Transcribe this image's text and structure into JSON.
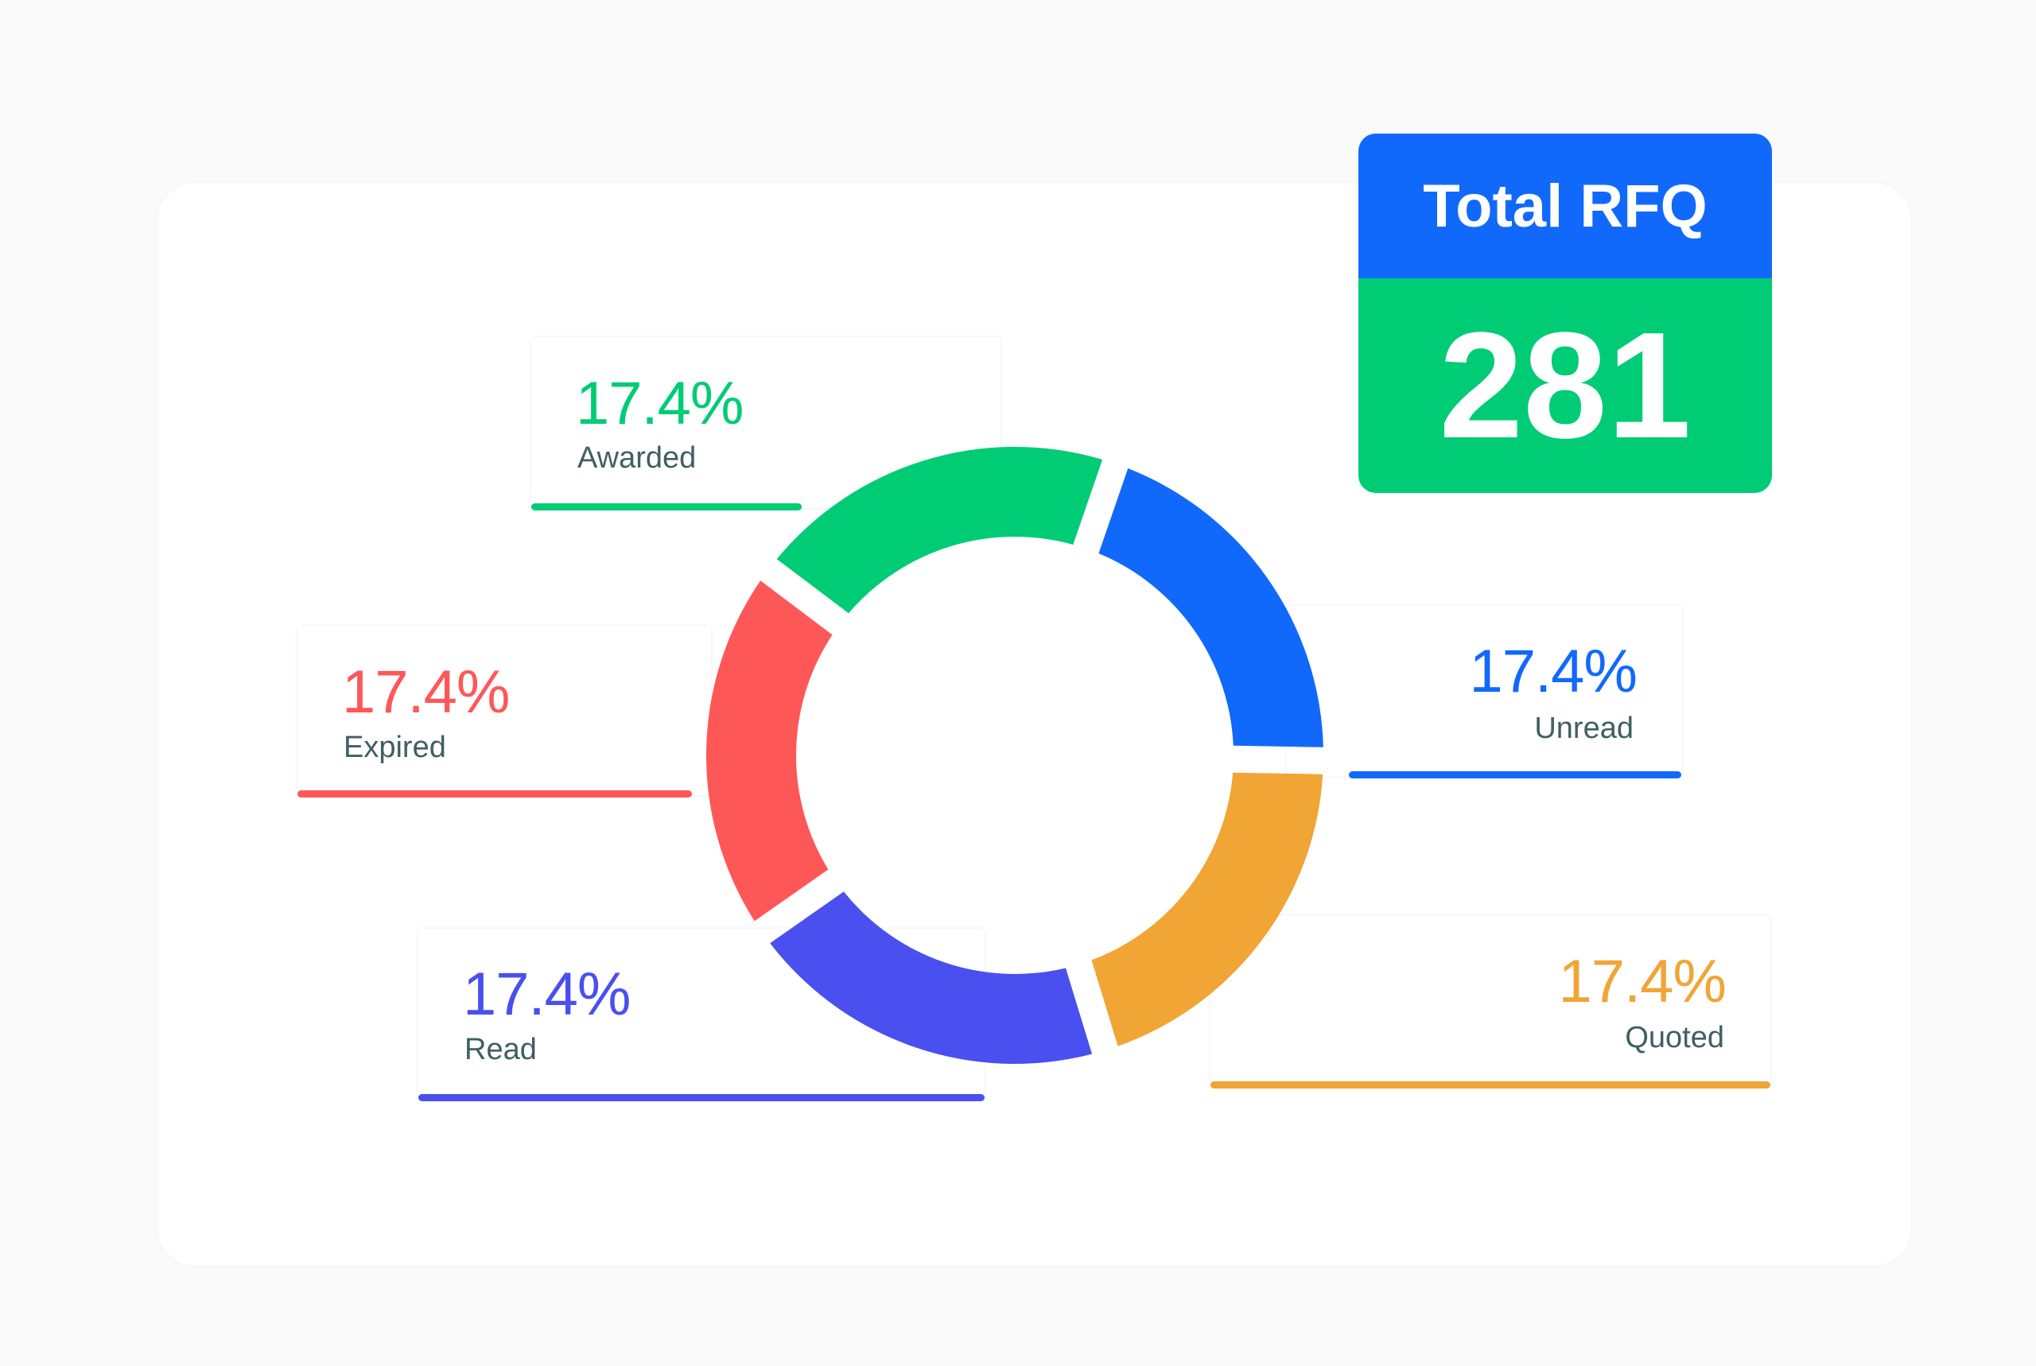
{
  "chart_data": {
    "type": "pie",
    "style": "donut",
    "categories": [
      "Awarded",
      "Unread",
      "Quoted",
      "Read",
      "Expired"
    ],
    "values": [
      17.4,
      17.4,
      17.4,
      17.4,
      17.4
    ],
    "value_labels": [
      "17.4%",
      "17.4%",
      "17.4%",
      "17.4%",
      "17.4%"
    ],
    "colors": [
      "#00cc75",
      "#1169fb",
      "#f0a535",
      "#4a4ff0",
      "#fe5757"
    ]
  },
  "total": {
    "title": "Total RFQ",
    "value": "281",
    "header_color": "#1169fb",
    "body_color": "#00cc75"
  },
  "labels": {
    "awarded": {
      "percent": "17.4%",
      "name": "Awarded",
      "color": "#00cc75"
    },
    "unread": {
      "percent": "17.4%",
      "name": "Unread",
      "color": "#1169fb"
    },
    "quoted": {
      "percent": "17.4%",
      "name": "Quoted",
      "color": "#f0a535"
    },
    "read": {
      "percent": "17.4%",
      "name": "Read",
      "color": "#4a4ff0"
    },
    "expired": {
      "percent": "17.4%",
      "name": "Expired",
      "color": "#fe5757"
    }
  }
}
